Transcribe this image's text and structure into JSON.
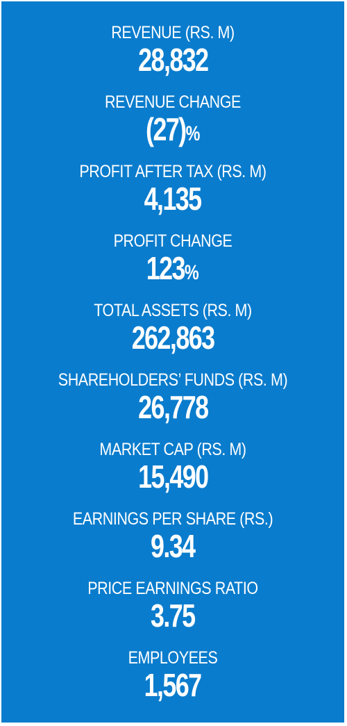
{
  "background_color": "#0a7ccd",
  "text_color": "#ffffff",
  "metrics": [
    {
      "label": "REVENUE (RS. M)",
      "value": "28,832",
      "unit": ""
    },
    {
      "label": "REVENUE CHANGE",
      "value": "(27)",
      "unit": "%"
    },
    {
      "label": "PROFIT AFTER TAX (RS. M)",
      "value": "4,135",
      "unit": ""
    },
    {
      "label": "PROFIT CHANGE",
      "value": "123",
      "unit": "%"
    },
    {
      "label": "TOTAL ASSETS (RS. M)",
      "value": "262,863",
      "unit": ""
    },
    {
      "label": "SHAREHOLDERS’ FUNDS (RS. M)",
      "value": "26,778",
      "unit": ""
    },
    {
      "label": "MARKET CAP (RS. M)",
      "value": "15,490",
      "unit": ""
    },
    {
      "label": "EARNINGS PER SHARE (RS.)",
      "value": "9.34",
      "unit": ""
    },
    {
      "label": "PRICE EARNINGS RATIO",
      "value": "3.75",
      "unit": ""
    },
    {
      "label": "EMPLOYEES",
      "value": "1,567",
      "unit": ""
    }
  ]
}
